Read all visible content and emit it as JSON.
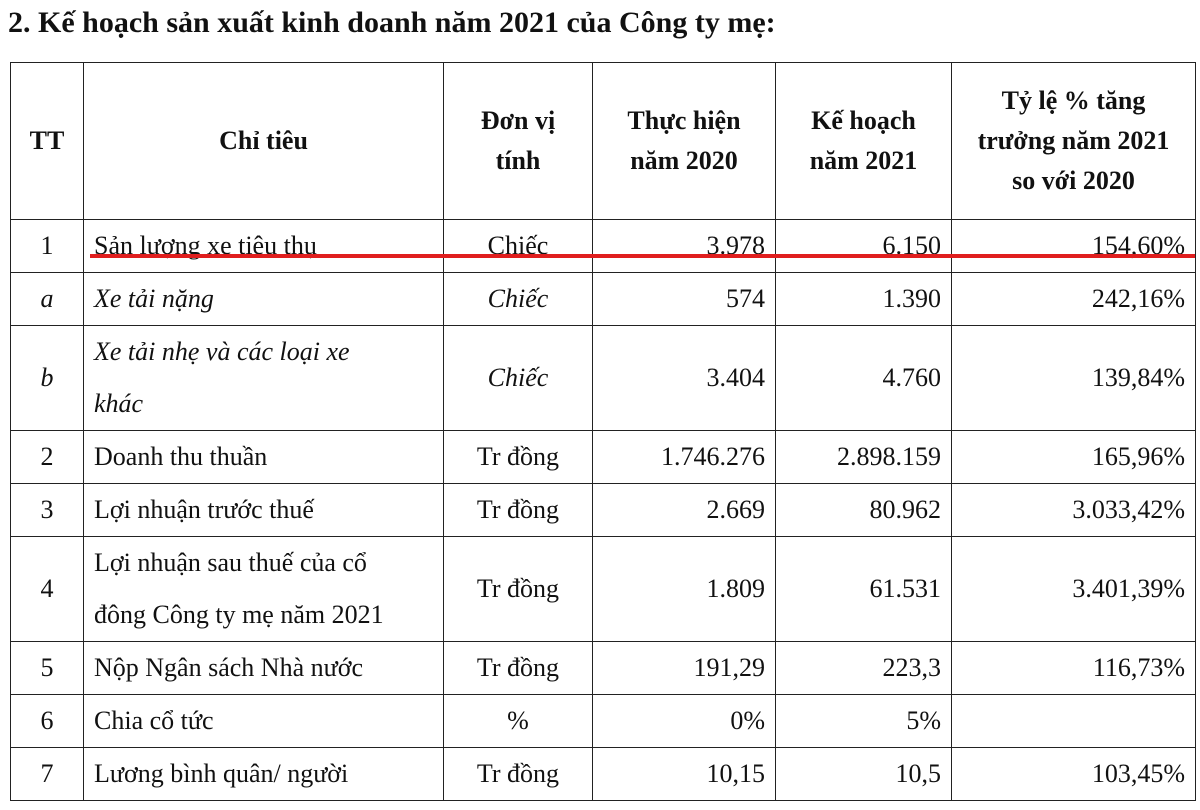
{
  "title": "2. Kế hoạch sản xuất kinh doanh năm 2021 của Công ty mẹ:",
  "table": {
    "header": [
      [
        "TT"
      ],
      [
        "Chỉ tiêu"
      ],
      [
        "Đơn vị",
        "tính"
      ],
      [
        "Thực hiện",
        "năm 2020"
      ],
      [
        "Kế hoạch",
        "năm 2021"
      ],
      [
        "Tỷ lệ % tăng",
        "trưởng năm 2021",
        "so với 2020"
      ]
    ],
    "rows": [
      [
        "1",
        "Sản lượng xe tiêu thụ",
        "Chiếc",
        "3.978",
        "6.150",
        "154,60%"
      ],
      [
        "a",
        "Xe tải nặng",
        "Chiếc",
        "574",
        "1.390",
        "242,16%"
      ],
      [
        "b",
        [
          "Xe tải nhẹ và các loại xe",
          "khác"
        ],
        "Chiếc",
        "3.404",
        "4.760",
        "139,84%"
      ],
      [
        "2",
        "Doanh thu thuần",
        "Tr đồng",
        "1.746.276",
        "2.898.159",
        "165,96%"
      ],
      [
        "3",
        "Lợi nhuận trước thuế",
        "Tr đồng",
        "2.669",
        "80.962",
        "3.033,42%"
      ],
      [
        "4",
        [
          "Lợi nhuận sau thuế của cổ",
          "đông Công ty mẹ năm 2021"
        ],
        "Tr đồng",
        "1.809",
        "61.531",
        "3.401,39%"
      ],
      [
        "5",
        "Nộp Ngân sách Nhà nước",
        "Tr đồng",
        "191,29",
        "223,3",
        "116,73%"
      ],
      [
        "6",
        "Chia cổ tức",
        "%",
        "0%",
        "5%",
        null
      ],
      [
        "7",
        "Lương bình quân/ người",
        "Tr đồng",
        "10,15",
        "10,5",
        "103,45%"
      ]
    ]
  }
}
